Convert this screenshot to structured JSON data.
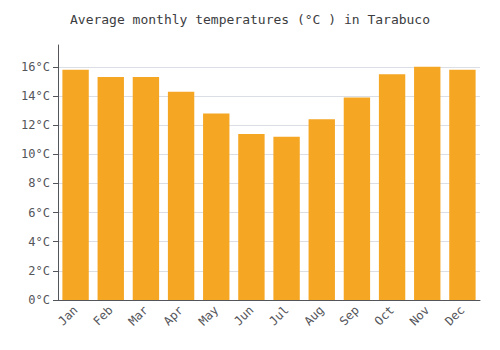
{
  "chart_data": {
    "type": "bar",
    "title": "Average monthly temperatures (°C ) in Tarabuco",
    "categories": [
      "Jan",
      "Feb",
      "Mar",
      "Apr",
      "May",
      "Jun",
      "Jul",
      "Aug",
      "Sep",
      "Oct",
      "Nov",
      "Dec"
    ],
    "values": [
      15.8,
      15.3,
      15.3,
      14.3,
      12.8,
      11.4,
      11.2,
      12.4,
      13.9,
      15.5,
      16.0,
      15.8
    ],
    "color": "#F5A623",
    "ylim": [
      0,
      17.5
    ],
    "yticks": [
      {
        "value": 0,
        "label": "0°C"
      },
      {
        "value": 2,
        "label": "2°C"
      },
      {
        "value": 4,
        "label": "4°C"
      },
      {
        "value": 6,
        "label": "6°C"
      },
      {
        "value": 8,
        "label": "8°C"
      },
      {
        "value": 10,
        "label": "10°C"
      },
      {
        "value": 12,
        "label": "12°C"
      },
      {
        "value": 14,
        "label": "14°C"
      },
      {
        "value": 16,
        "label": "16°C"
      }
    ],
    "grid": true
  }
}
